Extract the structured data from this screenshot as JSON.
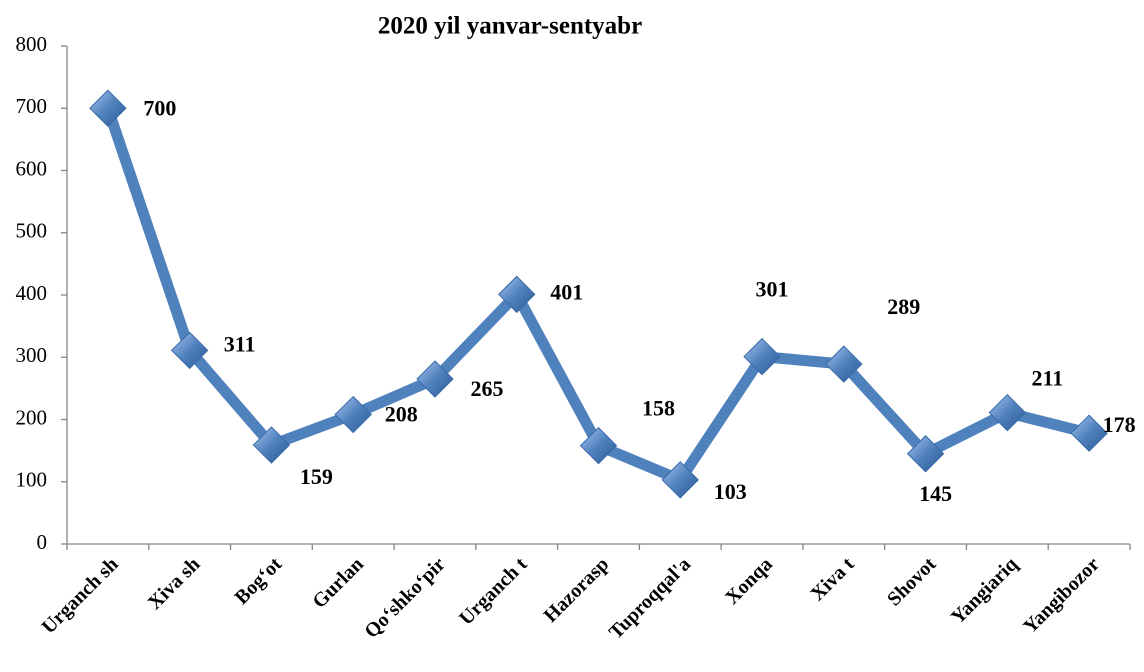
{
  "chart_data": {
    "type": "line",
    "title": "2020 yil yanvar-sentyabr",
    "categories": [
      "Urganch sh",
      "Xiva sh",
      "Bog‘ot",
      "Gurlan",
      "Qo‘shko‘pir",
      "Urganch t",
      "Hazorasp",
      "Tuproqqal'a",
      "Xonqa",
      "Xiva t",
      "Shovot",
      "Yangiariq",
      "Yangibozor"
    ],
    "values": [
      700,
      311,
      159,
      208,
      265,
      401,
      158,
      103,
      301,
      289,
      145,
      211,
      178
    ],
    "color": "#4f81bd",
    "ylim": [
      0,
      800
    ],
    "yticks": [
      0,
      100,
      200,
      300,
      400,
      500,
      600,
      700,
      800
    ],
    "grid": false
  }
}
